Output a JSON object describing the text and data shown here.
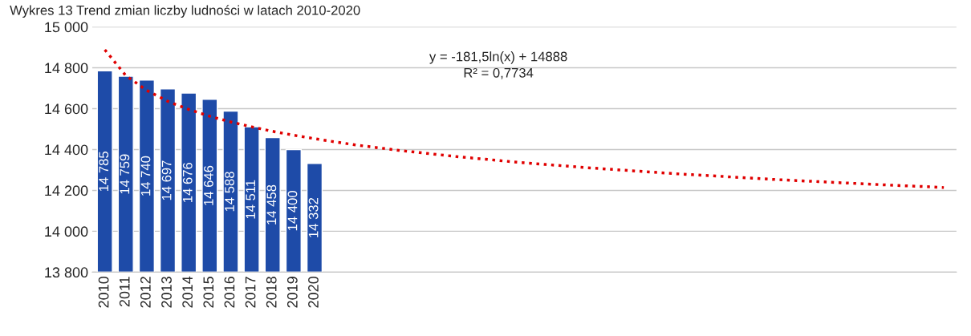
{
  "chart_data": {
    "type": "bar",
    "title": "Wykres 13 Trend zmian liczby ludności w latach 2010-2020",
    "categories": [
      "2010",
      "2011",
      "2012",
      "2013",
      "2014",
      "2015",
      "2016",
      "2017",
      "2018",
      "2019",
      "2020",
      null,
      null,
      null,
      null,
      null,
      null,
      null,
      null,
      null,
      null,
      null,
      null,
      null,
      null,
      null,
      null,
      null,
      null,
      null,
      null,
      null,
      null,
      null,
      null,
      null,
      null,
      null,
      null,
      null,
      null
    ],
    "series": [
      {
        "color": "#1e4ba8",
        "values": [
          14785,
          14759,
          14740,
          14697,
          14676,
          14646,
          14588,
          14511,
          14458,
          14400,
          14332,
          null,
          null,
          null,
          null,
          null,
          null,
          null,
          null,
          null,
          null,
          null,
          null,
          null,
          null,
          null,
          null,
          null,
          null,
          null,
          null,
          null,
          null,
          null,
          null,
          null,
          null,
          null,
          null,
          null,
          null
        ],
        "value_labels": [
          "14 785",
          "14 759",
          "14 740",
          "14 697",
          "14 676",
          "14 646",
          "14 588",
          "14 511",
          "14 458",
          "14 400",
          "14 332",
          null,
          null,
          null,
          null,
          null,
          null,
          null,
          null,
          null,
          null,
          null,
          null,
          null,
          null,
          null,
          null,
          null,
          null,
          null,
          null,
          null,
          null,
          null,
          null,
          null,
          null,
          null,
          null,
          null,
          null
        ]
      },
      {
        "type": "line",
        "color": "#e00000",
        "line_style": "dotted",
        "values": [
          14888,
          14762,
          14689,
          14636,
          14596,
          14563,
          14535,
          14511,
          14489,
          14470,
          14453,
          14437,
          14422,
          14409,
          14396,
          14385,
          14374,
          14363,
          14354,
          14344,
          14335,
          14327,
          14319,
          14311,
          14304,
          14297,
          14290,
          14283,
          14277,
          14271,
          14265,
          14259,
          14253,
          14248,
          14243,
          14238,
          14233,
          14228,
          14223,
          14219,
          14214
        ]
      }
    ],
    "ylim": [
      13800,
      15000
    ],
    "yticks": [
      {
        "value": 13800,
        "label": "13 800"
      },
      {
        "value": 14000,
        "label": "14 000"
      },
      {
        "value": 14200,
        "label": "14 200"
      },
      {
        "value": 14400,
        "label": "14 400"
      },
      {
        "value": 14600,
        "label": "14 600"
      },
      {
        "value": 14800,
        "label": "14 800"
      },
      {
        "value": 15000,
        "label": "15 000"
      }
    ],
    "grid": "y",
    "annotations": [
      "y = -181,5ln(x) + 14888\nR² = 0,7734"
    ]
  }
}
